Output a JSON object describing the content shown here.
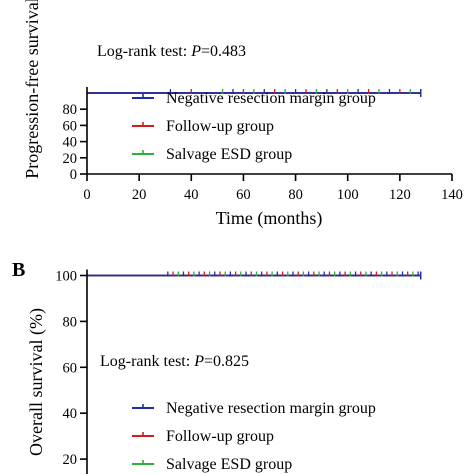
{
  "chart_data": [
    {
      "type": "line",
      "panel_label": "",
      "title": "",
      "ylabel": "Progression-free survival",
      "xlabel": "Time (months)",
      "xlim": [
        0,
        140
      ],
      "ylim": [
        0,
        100
      ],
      "x_ticks": [
        "0",
        "20",
        "40",
        "60",
        "80",
        "100",
        "120",
        "140"
      ],
      "y_ticks": [
        "0",
        "20",
        "40",
        "60",
        "80"
      ],
      "annotation_prefix": "Log-rank test: ",
      "annotation_p": "P",
      "annotation_value": "=0.483",
      "legend_position": "center",
      "series": [
        {
          "name": "Negative resection margin group",
          "color": "#1f2fa6",
          "x": [
            0,
            128
          ],
          "y": [
            100,
            100
          ]
        },
        {
          "name": "Follow-up group",
          "color": "#d11d1d",
          "x": [
            0,
            128
          ],
          "y": [
            100,
            100
          ]
        },
        {
          "name": "Salvage ESD group",
          "color": "#2fae3a",
          "x": [
            0,
            128
          ],
          "y": [
            100,
            100
          ]
        }
      ],
      "censor_x": [
        32,
        40,
        52,
        56,
        60,
        64,
        68,
        72,
        76,
        80,
        84,
        88,
        92,
        96,
        100,
        104,
        108,
        112,
        116,
        120,
        124,
        128
      ]
    },
    {
      "type": "line",
      "panel_label": "B",
      "title": "",
      "ylabel": "Overall survival (%)",
      "xlabel": "",
      "xlim": [
        0,
        140
      ],
      "ylim": [
        0,
        100
      ],
      "x_ticks": [],
      "y_ticks": [
        "20",
        "40",
        "60",
        "80",
        "100"
      ],
      "annotation_prefix": "Log-rank test: ",
      "annotation_p": "P",
      "annotation_value": "=0.825",
      "legend_position": "center",
      "series": [
        {
          "name": "Negative resection margin group",
          "color": "#1f2fa6",
          "x": [
            0,
            128
          ],
          "y": [
            100,
            100
          ]
        },
        {
          "name": "Follow-up group",
          "color": "#d11d1d",
          "x": [
            0,
            128
          ],
          "y": [
            100,
            100
          ]
        },
        {
          "name": "Salvage ESD group",
          "color": "#2fae3a",
          "x": [
            0,
            128
          ],
          "y": [
            100,
            100
          ]
        }
      ],
      "censor_x": [
        31,
        33,
        35,
        37,
        39,
        41,
        43,
        45,
        47,
        49,
        51,
        53,
        55,
        57,
        59,
        61,
        63,
        65,
        67,
        69,
        71,
        73,
        75,
        77,
        79,
        81,
        83,
        85,
        87,
        89,
        91,
        93,
        95,
        97,
        99,
        101,
        103,
        105,
        107,
        109,
        111,
        113,
        115,
        117,
        119,
        121,
        123,
        125,
        127
      ]
    }
  ]
}
